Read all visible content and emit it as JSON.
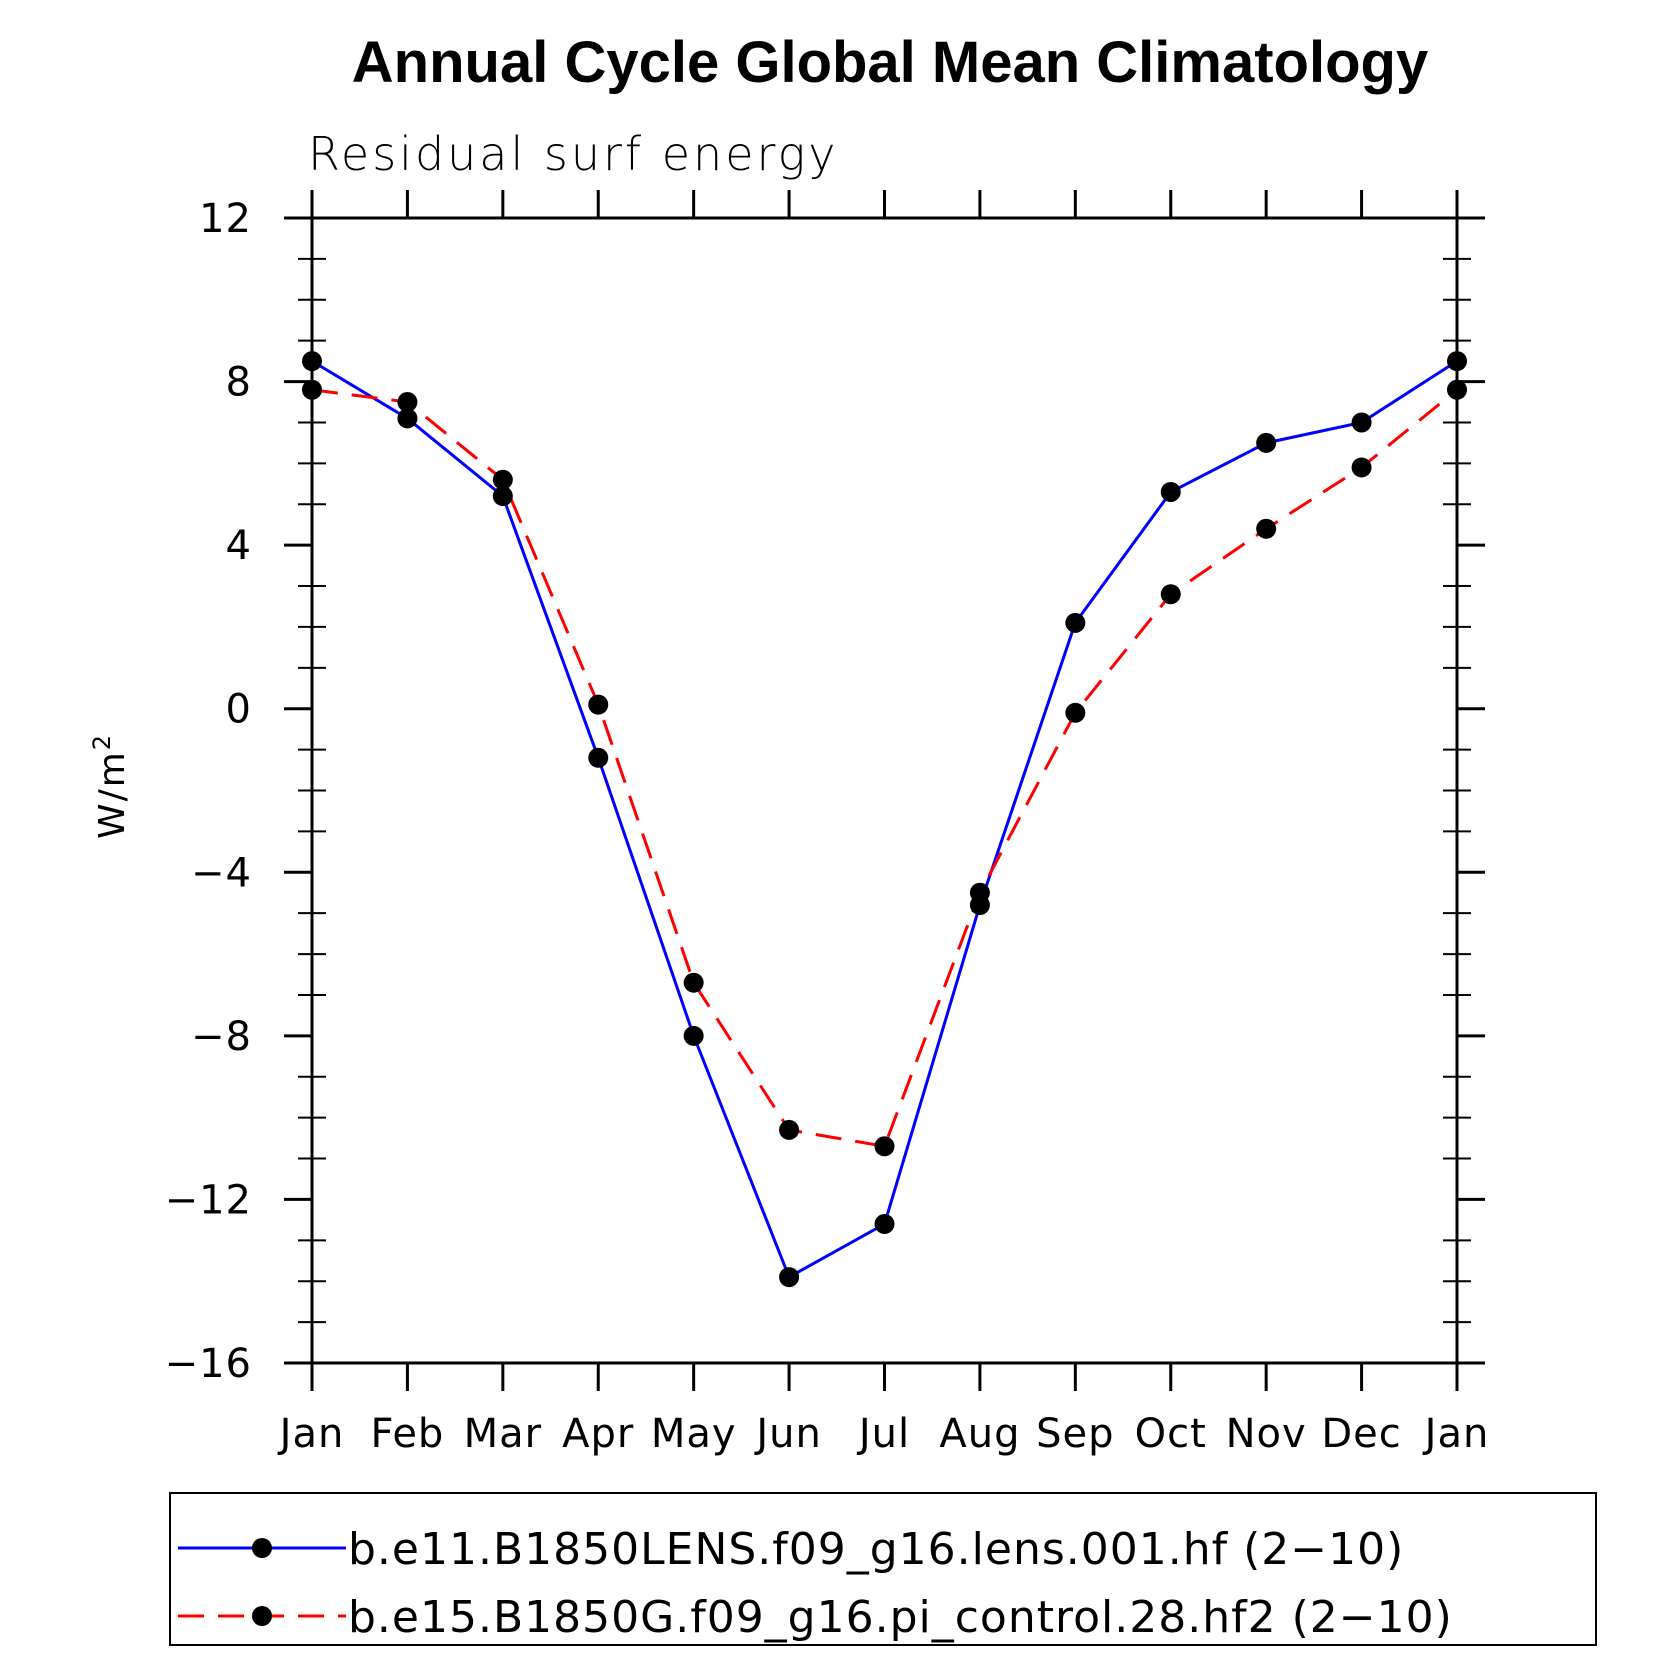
{
  "chart_data": {
    "type": "line",
    "title": "Annual Cycle Global Mean Climatology",
    "subtitle": "Residual surf energy",
    "ylabel": "W/m",
    "ylabel_sup": "2",
    "xlabel": "",
    "categories": [
      "Jan",
      "Feb",
      "Mar",
      "Apr",
      "May",
      "Jun",
      "Jul",
      "Aug",
      "Sep",
      "Oct",
      "Nov",
      "Dec",
      "Jan"
    ],
    "ylim": [
      -16,
      12
    ],
    "yticks": [
      -16,
      -12,
      -8,
      -4,
      0,
      4,
      8,
      12
    ],
    "ytick_labels": [
      "−16",
      "−12",
      "−8",
      "−4",
      "0",
      "4",
      "8",
      "12"
    ],
    "legend_position": "bottom",
    "grid": false,
    "series": [
      {
        "name": "b.e11.B1850LENS.f09_g16.lens.001.hf (2−10)",
        "color": "#0000ff",
        "line_style": "solid",
        "marker": "filled-circle",
        "values": [
          8.5,
          7.1,
          5.2,
          -1.2,
          -8.0,
          -13.9,
          -12.6,
          -4.8,
          2.1,
          5.3,
          6.5,
          7.0,
          8.5
        ]
      },
      {
        "name": "b.e15.B1850G.f09_g16.pi_control.28.hf2 (2−10)",
        "color": "#ff0000",
        "line_style": "dashed",
        "marker": "filled-circle",
        "values": [
          7.8,
          7.5,
          5.6,
          0.1,
          -6.7,
          -10.3,
          -10.7,
          -4.5,
          -0.1,
          2.8,
          4.4,
          5.9,
          7.8
        ]
      }
    ]
  }
}
